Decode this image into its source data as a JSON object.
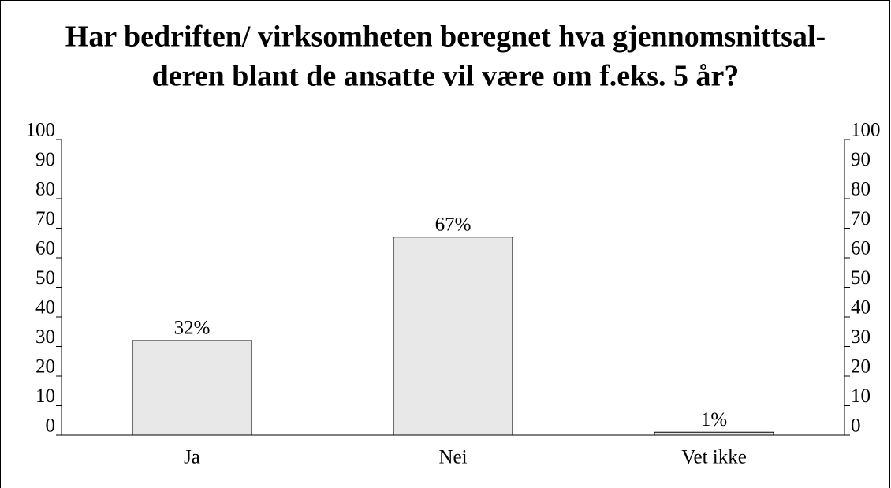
{
  "chart_data": {
    "type": "bar",
    "title": [
      "Har bedriften/ virksomheten beregnet hva gjennomsnittsal-",
      "deren blant de ansatte vil være om f.eks. 5 år?"
    ],
    "categories": [
      "Ja",
      "Nei",
      "Vet ikke"
    ],
    "values": [
      32,
      67,
      1
    ],
    "value_labels": [
      "32%",
      "67%",
      "1%"
    ],
    "color": "#e8e8e8",
    "ylim": [
      0,
      100
    ],
    "yticks": [
      0,
      10,
      20,
      30,
      40,
      50,
      60,
      70,
      80,
      90,
      100
    ],
    "y2lim": [
      0,
      100
    ],
    "y2ticks": [
      0,
      10,
      20,
      30,
      40,
      50,
      60,
      70,
      80,
      90,
      100
    ]
  }
}
